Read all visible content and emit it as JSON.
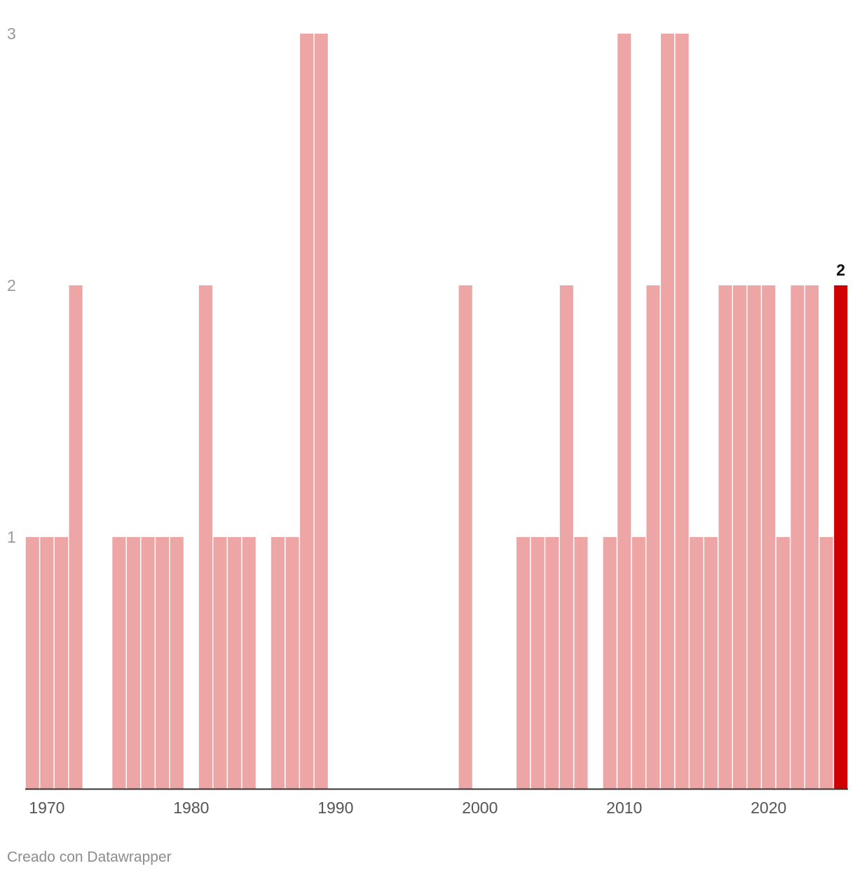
{
  "chart_data": {
    "type": "bar",
    "categories": [
      1969,
      1970,
      1971,
      1972,
      1973,
      1974,
      1975,
      1976,
      1977,
      1978,
      1979,
      1980,
      1981,
      1982,
      1983,
      1984,
      1985,
      1986,
      1987,
      1988,
      1989,
      1990,
      1991,
      1992,
      1993,
      1994,
      1995,
      1996,
      1997,
      1998,
      1999,
      2000,
      2001,
      2002,
      2003,
      2004,
      2005,
      2006,
      2007,
      2008,
      2009,
      2010,
      2011,
      2012,
      2013,
      2014,
      2015,
      2016,
      2017,
      2018,
      2019,
      2020,
      2021,
      2022,
      2023,
      2024,
      2025
    ],
    "values": [
      1,
      1,
      1,
      2,
      0,
      0,
      1,
      1,
      1,
      1,
      1,
      0,
      2,
      1,
      1,
      1,
      0,
      1,
      1,
      3,
      3,
      0,
      0,
      0,
      0,
      0,
      0,
      0,
      0,
      0,
      2,
      0,
      0,
      0,
      1,
      1,
      1,
      2,
      1,
      0,
      1,
      3,
      1,
      2,
      3,
      3,
      1,
      1,
      2,
      2,
      2,
      2,
      1,
      2,
      2,
      1,
      2
    ],
    "ylim": [
      0,
      3
    ],
    "yticks": [
      "1",
      "2",
      "3"
    ],
    "xticks": [
      "1970",
      "1980",
      "1990",
      "2000",
      "2010",
      "2020"
    ],
    "highlight": {
      "category": 2025,
      "value_label": "2"
    },
    "colors": {
      "bar": "#eda5a6",
      "highlight": "#d10000",
      "baseline": "#333333"
    },
    "grid": false,
    "title": "",
    "xlabel": "",
    "ylabel": ""
  },
  "footer": {
    "credit": "Creado con Datawrapper"
  }
}
